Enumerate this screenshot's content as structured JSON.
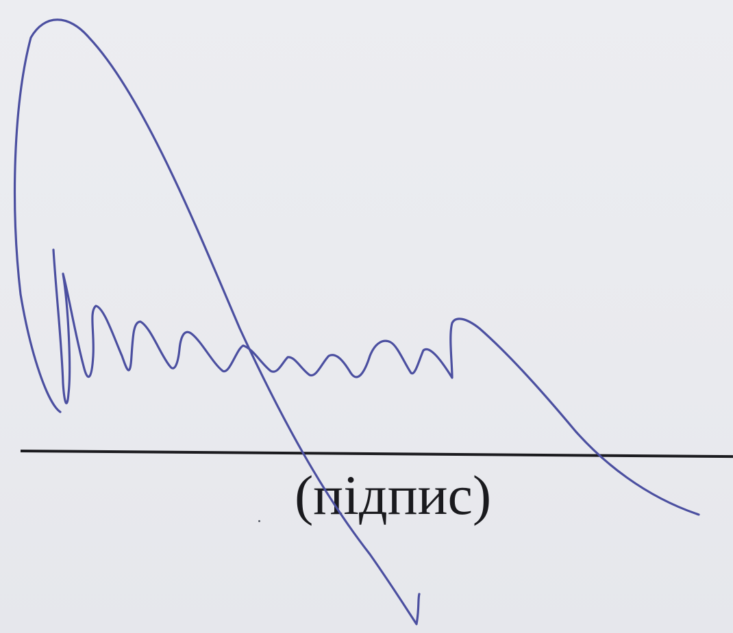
{
  "document": {
    "caption": "(підпис)"
  },
  "colors": {
    "paper": "#eaebf0",
    "ink": "#4b4fa0",
    "line": "#1b1b1f"
  }
}
